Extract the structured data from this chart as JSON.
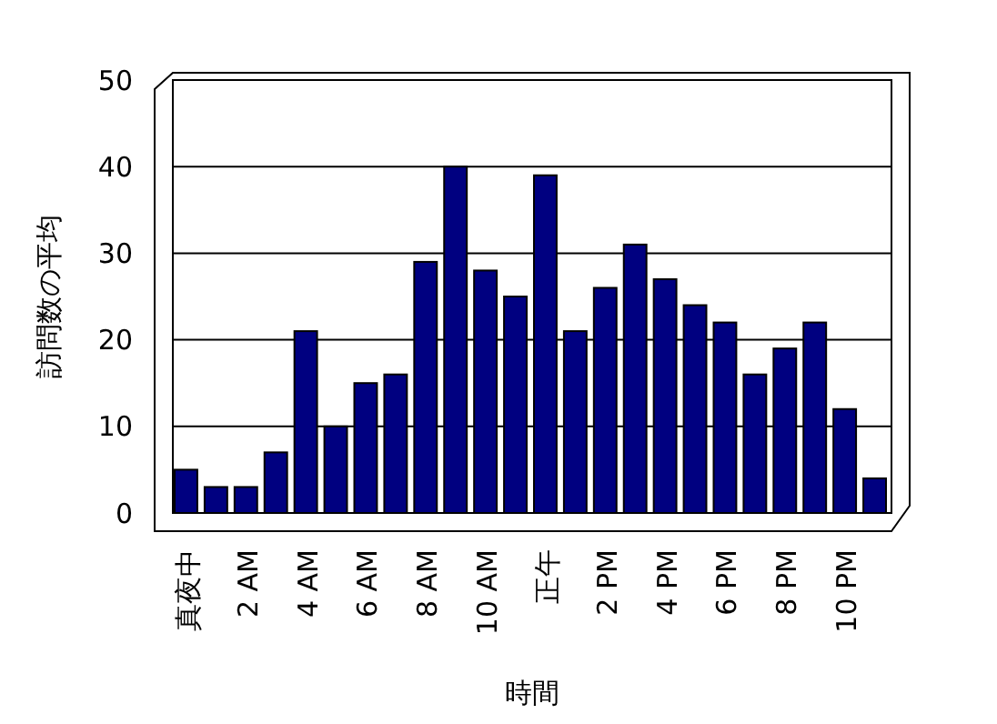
{
  "chart_data": {
    "type": "bar",
    "xlabel": "時間",
    "ylabel": "訪問数の平均",
    "categories": [
      "真夜中",
      null,
      "2 AM",
      null,
      "4 AM",
      null,
      "6 AM",
      null,
      "8 AM",
      null,
      "10 AM",
      null,
      "正午",
      null,
      "2 PM",
      null,
      "4 PM",
      null,
      "6 PM",
      null,
      "8 PM",
      null,
      "10 PM",
      null
    ],
    "values": [
      5,
      3,
      3,
      7,
      21,
      10,
      15,
      16,
      29,
      40,
      28,
      25,
      39,
      21,
      26,
      31,
      27,
      24,
      22,
      16,
      19,
      22,
      12,
      4
    ],
    "color": "#000080",
    "ylim": [
      0,
      50
    ],
    "yticks": [
      0,
      10,
      20,
      30,
      40,
      50
    ],
    "grid": "y"
  }
}
